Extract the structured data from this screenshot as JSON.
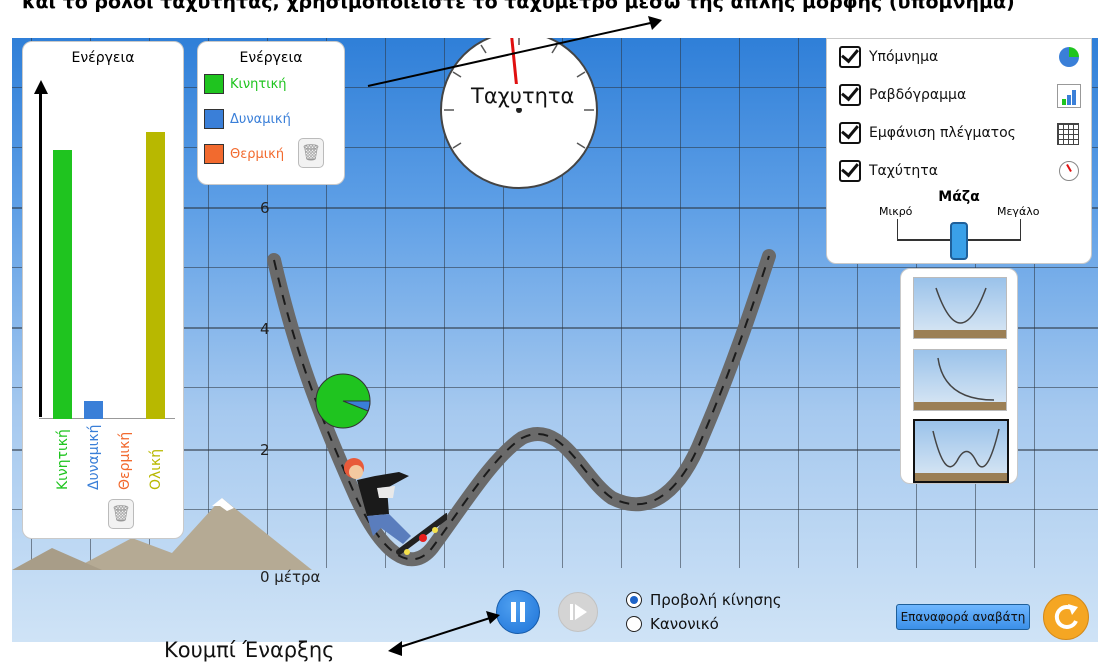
{
  "annotations": {
    "top_caption": "και το ρολόι ταχύτητας, χρησιμοποιείστε το ταχύμετρο μέσω της απλής μορφής (υπόμνημα)",
    "start_button_caption": "Κουμπί Έναρξης"
  },
  "energy_chart": {
    "title": "Ενέργεια",
    "bars": [
      {
        "label": "Κινητική",
        "value": 4.4,
        "color": "#1fc41f"
      },
      {
        "label": "Δυναμική",
        "value": 0.3,
        "color": "#3a7fd8"
      },
      {
        "label": "Θερμική",
        "value": 0,
        "color": "#f26a2e"
      },
      {
        "label": "Ολική",
        "value": 4.7,
        "color": "#b8b800"
      }
    ]
  },
  "legend": {
    "title": "Ενέργεια",
    "items": [
      {
        "label": "Κινητική",
        "color": "#1fc41f"
      },
      {
        "label": "Δυναμική",
        "color": "#3a7fd8"
      },
      {
        "label": "Θερμική",
        "color": "#f26a2e"
      }
    ]
  },
  "speedometer": {
    "label": "Ταχυτητα"
  },
  "height_axis": {
    "labels": [
      "6",
      "4",
      "2",
      "0 μέτρα"
    ]
  },
  "pie": {
    "kinetic_fraction": 0.94
  },
  "controls": {
    "options": [
      {
        "label": "Υπόμνημα",
        "icon": "pie-icon",
        "checked": true
      },
      {
        "label": "Ραβδόγραμμα",
        "icon": "bar-chart-icon",
        "checked": true
      },
      {
        "label": "Εμφάνιση πλέγματος",
        "icon": "grid-icon",
        "checked": true
      },
      {
        "label": "Ταχύτητα",
        "icon": "speedometer-icon",
        "checked": true
      }
    ],
    "mass": {
      "title": "Μάζα",
      "min_label": "Μικρό",
      "max_label": "Μεγάλο",
      "level": 0.5
    }
  },
  "playback": {
    "modes": [
      {
        "label": "Προβολή κίνησης",
        "selected": true
      },
      {
        "label": "Κανονικό",
        "selected": false
      }
    ]
  },
  "reset_skater": {
    "label": "Επαναφορά αναβάτη"
  },
  "colors": {
    "kinetic": "#1fc41f",
    "potential": "#3a7fd8",
    "thermal": "#f26a2e",
    "total": "#b8b800",
    "button_blue": "#1e73d8",
    "reset_orange": "#f5a623"
  }
}
